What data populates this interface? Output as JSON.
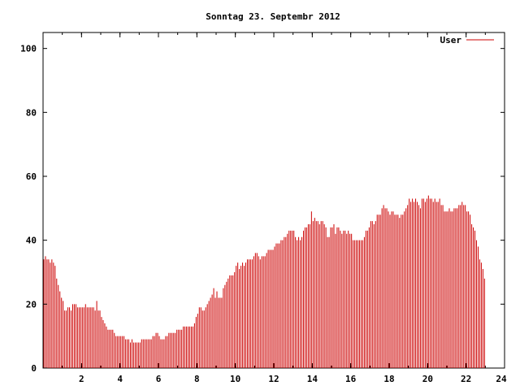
{
  "chart_data": {
    "type": "bar",
    "title": "Sonntag 23. Septembr 2012",
    "xlabel": "",
    "ylabel": "",
    "xlim": [
      0,
      24
    ],
    "ylim": [
      0,
      105
    ],
    "x_ticks": [
      2,
      4,
      6,
      8,
      10,
      12,
      14,
      16,
      18,
      20,
      22,
      24
    ],
    "y_ticks": [
      0,
      20,
      40,
      60,
      80,
      100
    ],
    "legend": {
      "position": "top-right",
      "entries": [
        {
          "name": "User",
          "color": "#cc0000"
        }
      ]
    },
    "grid": false,
    "bar_color": "#cc0000",
    "series": [
      {
        "name": "User",
        "interval_minutes": 5,
        "values": [
          34,
          35,
          34,
          34,
          33,
          34,
          33,
          32,
          28,
          26,
          24,
          22,
          21,
          18,
          18,
          19,
          19,
          18,
          20,
          20,
          20,
          19,
          19,
          19,
          19,
          19,
          20,
          19,
          19,
          19,
          19,
          19,
          18,
          21,
          18,
          18,
          16,
          15,
          14,
          13,
          12,
          12,
          12,
          12,
          11,
          10,
          10,
          10,
          10,
          10,
          10,
          9,
          9,
          9,
          8,
          9,
          8,
          8,
          8,
          8,
          8,
          9,
          9,
          9,
          9,
          9,
          9,
          9,
          10,
          10,
          11,
          11,
          10,
          9,
          9,
          9,
          10,
          10,
          11,
          11,
          11,
          11,
          11,
          12,
          12,
          12,
          12,
          13,
          13,
          13,
          13,
          13,
          13,
          13,
          14,
          16,
          17,
          19,
          19,
          18,
          18,
          19,
          20,
          21,
          22,
          23,
          25,
          22,
          24,
          22,
          22,
          22,
          25,
          26,
          27,
          28,
          29,
          29,
          29,
          30,
          32,
          33,
          31,
          32,
          33,
          32,
          33,
          34,
          34,
          34,
          34,
          35,
          36,
          36,
          35,
          34,
          35,
          35,
          35,
          36,
          37,
          37,
          37,
          37,
          38,
          39,
          39,
          39,
          40,
          40,
          41,
          41,
          42,
          43,
          43,
          43,
          43,
          41,
          40,
          41,
          40,
          41,
          43,
          44,
          44,
          45,
          45,
          49,
          46,
          47,
          46,
          46,
          45,
          46,
          46,
          45,
          44,
          41,
          41,
          44,
          44,
          45,
          42,
          44,
          44,
          43,
          42,
          43,
          43,
          42,
          43,
          42,
          42,
          40,
          40,
          40,
          40,
          40,
          40,
          40,
          41,
          43,
          43,
          44,
          46,
          46,
          45,
          46,
          48,
          48,
          48,
          50,
          51,
          50,
          50,
          49,
          48,
          49,
          49,
          48,
          48,
          48,
          47,
          48,
          48,
          49,
          50,
          51,
          53,
          52,
          53,
          52,
          53,
          52,
          51,
          50,
          53,
          53,
          52,
          53,
          54,
          53,
          53,
          52,
          53,
          52,
          52,
          53,
          51,
          51,
          49,
          49,
          49,
          50,
          49,
          49,
          50,
          50,
          50,
          51,
          51,
          52,
          51,
          51,
          49,
          49,
          48,
          45,
          44,
          43,
          40,
          38,
          34,
          33,
          31,
          28
        ]
      }
    ]
  }
}
